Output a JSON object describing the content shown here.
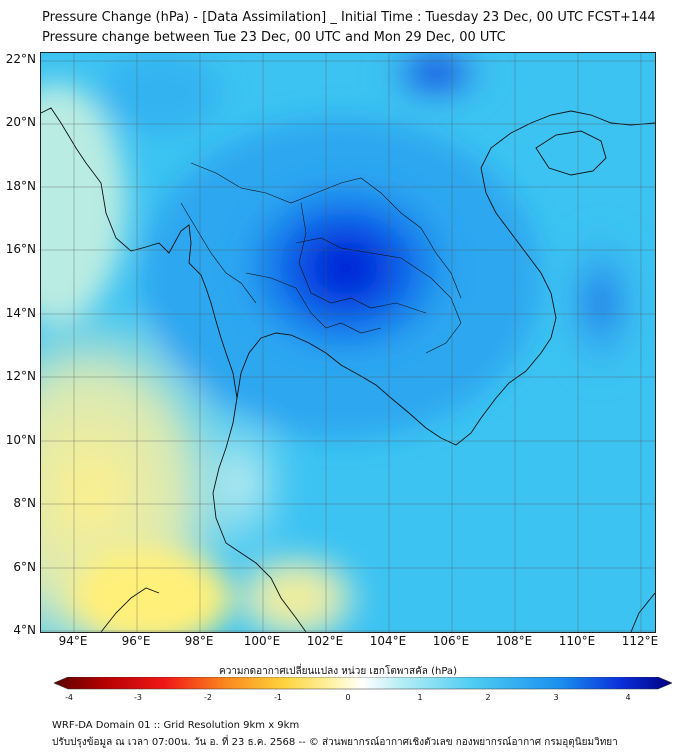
{
  "title": "Pressure Change (hPa) - [Data Assimilation] _ Initial Time : Tuesday 23 Dec, 00 UTC FCST+144",
  "subtitle": "Pressure change between Tue 23 Dec, 00 UTC and Mon 29 Dec, 00 UTC",
  "lat_labels": [
    "22°N",
    "20°N",
    "18°N",
    "16°N",
    "14°N",
    "12°N",
    "10°N",
    "8°N",
    "6°N",
    "4°N"
  ],
  "lon_labels": [
    "94°E",
    "96°E",
    "98°E",
    "100°E",
    "102°E",
    "104°E",
    "106°E",
    "108°E",
    "110°E",
    "112°E"
  ],
  "colorbar": {
    "title": "ความกดอากาศเปลี่ยนแปลง หน่วย เฮกโตพาสคัล (hPa)",
    "ticks": [
      "-4",
      "-3",
      "-2",
      "-1",
      "0",
      "1",
      "2",
      "3",
      "4"
    ],
    "min": -4,
    "max": 4
  },
  "footer": {
    "line1": "WRF-DA Domain 01 :: Grid Resolution 9km x 9km",
    "line2": "ปรับปรุงข้อมูล ณ เวลา 07:00น. วัน อ. ที่ 23 ธ.ค. 2568 -- © ส่วนพยากรณ์อากาศเชิงตัวเลข กองพยากรณ์อากาศ กรมอุตุนิยมวิทยา"
  },
  "colors": {
    "strong_fall": "#0000c8",
    "mid_fall": "#1fa0f0",
    "weak_fall": "#52cdf5",
    "rise": "#ffee88"
  }
}
